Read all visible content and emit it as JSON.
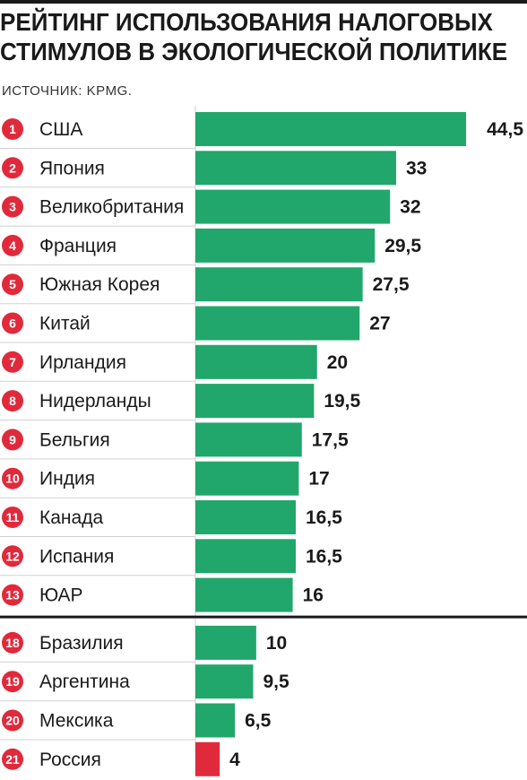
{
  "header": {
    "title_line1": "РЕЙТИНГ ИСПОЛЬЗОВАНИЯ НАЛОГОВЫХ",
    "title_line2": "СТИМУЛОВ В ЭКОЛОГИЧЕСКОЙ ПОЛИТИКЕ",
    "source": "ИСТОЧНИК: KPMG."
  },
  "colors": {
    "bar": "#21a76b",
    "bar_lowest": "#e02a3c",
    "rank_badge": "#e02a3c"
  },
  "chart_data": {
    "type": "bar",
    "orientation": "horizontal",
    "title": "РЕЙТИНГ ИСПОЛЬЗОВАНИЯ НАЛОГОВЫХ СТИМУЛОВ В ЭКОЛОГИЧЕСКОЙ ПОЛИТИКЕ",
    "source": "ИСТОЧНИК: KPMG.",
    "ranks": [
      "1",
      "2",
      "3",
      "4",
      "5",
      "6",
      "7",
      "8",
      "9",
      "10",
      "11",
      "12",
      "13",
      "18",
      "19",
      "20",
      "21"
    ],
    "categories": [
      "США",
      "Япония",
      "Великобритания",
      "Франция",
      "Южная Корея",
      "Китай",
      "Ирландия",
      "Нидерланды",
      "Бельгия",
      "Индия",
      "Канада",
      "Испания",
      "ЮАР",
      "Бразилия",
      "Аргентина",
      "Мексика",
      "Россия"
    ],
    "values": [
      44.5,
      33,
      32,
      29.5,
      27.5,
      27,
      20,
      19.5,
      17.5,
      17,
      16.5,
      16.5,
      16,
      10,
      9.5,
      6.5,
      4
    ],
    "value_labels": [
      "44,5",
      "33",
      "32",
      "29,5",
      "27,5",
      "27",
      "20",
      "19,5",
      "17,5",
      "17",
      "16,5",
      "16,5",
      "16",
      "10",
      "9,5",
      "6,5",
      "4"
    ],
    "xlim": [
      0,
      44.5
    ],
    "grid": false,
    "legend": "none",
    "group_break_after_rank": "13"
  }
}
